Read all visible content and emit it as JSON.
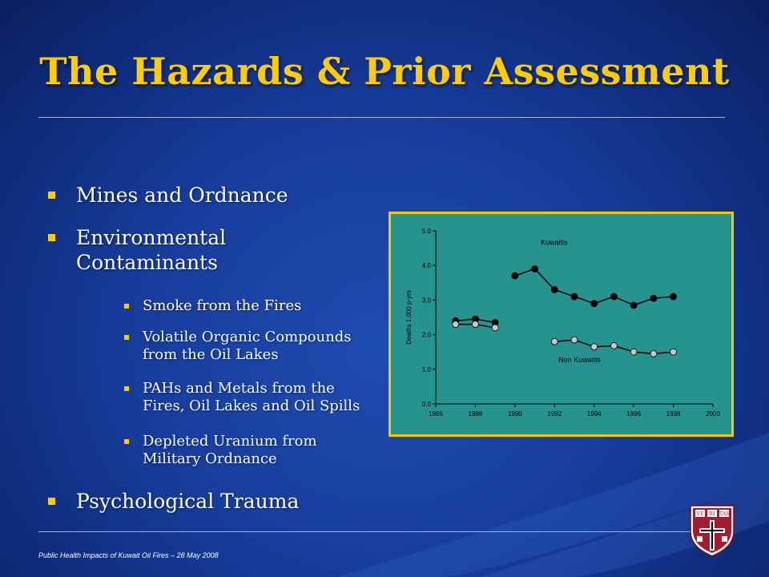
{
  "slide": {
    "title": "The Hazards & Prior Assessment",
    "footer": "Public Health Impacts of Kuwait Oil Fires – 28 May 2008",
    "colors": {
      "title": "#ffcc00",
      "background": "#173d9c",
      "bullet": "#ffcc00",
      "chart_border": "#f5c800",
      "chart_bg": "#26938f"
    }
  },
  "bullets": [
    {
      "text": "Mines and Ordnance"
    },
    {
      "text": "Environmental",
      "text2": "Contaminants"
    },
    {
      "text": "Psychological Trauma"
    }
  ],
  "subbullets": [
    {
      "line1": "Smoke from the Fires",
      "line2": ""
    },
    {
      "line1": "Volatile Organic Compounds",
      "line2": "from the Oil Lakes"
    },
    {
      "line1": "PAHs and Metals from the",
      "line2": "Fires, Oil Lakes and Oil Spills"
    },
    {
      "line1": "Depleted Uranium from",
      "line2": "Military Ordnance"
    }
  ],
  "seal": {
    "text": "VE RI TAS",
    "icon": "harvard-shield-icon"
  },
  "chart_data": {
    "type": "line",
    "title": "",
    "xlabel": "",
    "ylabel": "Deaths 1,000 p-yrs",
    "xlim": [
      1986,
      2000
    ],
    "ylim": [
      0.0,
      5.0
    ],
    "x_ticks": [
      "1986",
      "1988",
      "1990",
      "1992",
      "1994",
      "1996",
      "1998",
      "2000"
    ],
    "y_ticks": [
      "0.0",
      "1.0",
      "2.0",
      "3.0",
      "4.0",
      "5.0"
    ],
    "grid": false,
    "series": [
      {
        "name": "Kuwaitis",
        "color": "#000000",
        "segments": [
          [
            [
              1987,
              2.4
            ],
            [
              1988,
              2.45
            ],
            [
              1989,
              2.35
            ]
          ],
          [
            [
              1990,
              3.7
            ],
            [
              1991,
              3.9
            ],
            [
              1992,
              3.3
            ],
            [
              1993,
              3.1
            ],
            [
              1994,
              2.9
            ],
            [
              1995,
              3.1
            ],
            [
              1996,
              2.85
            ],
            [
              1997,
              3.05
            ],
            [
              1998,
              3.1
            ]
          ]
        ]
      },
      {
        "name": "Non Kuwaitis",
        "color": "#c8c8c8",
        "segments": [
          [
            [
              1987,
              2.3
            ],
            [
              1988,
              2.3
            ],
            [
              1989,
              2.2
            ]
          ],
          [
            [
              1992,
              1.8
            ],
            [
              1993,
              1.85
            ],
            [
              1994,
              1.65
            ],
            [
              1995,
              1.68
            ],
            [
              1996,
              1.5
            ],
            [
              1997,
              1.45
            ],
            [
              1998,
              1.5
            ]
          ]
        ]
      }
    ]
  }
}
